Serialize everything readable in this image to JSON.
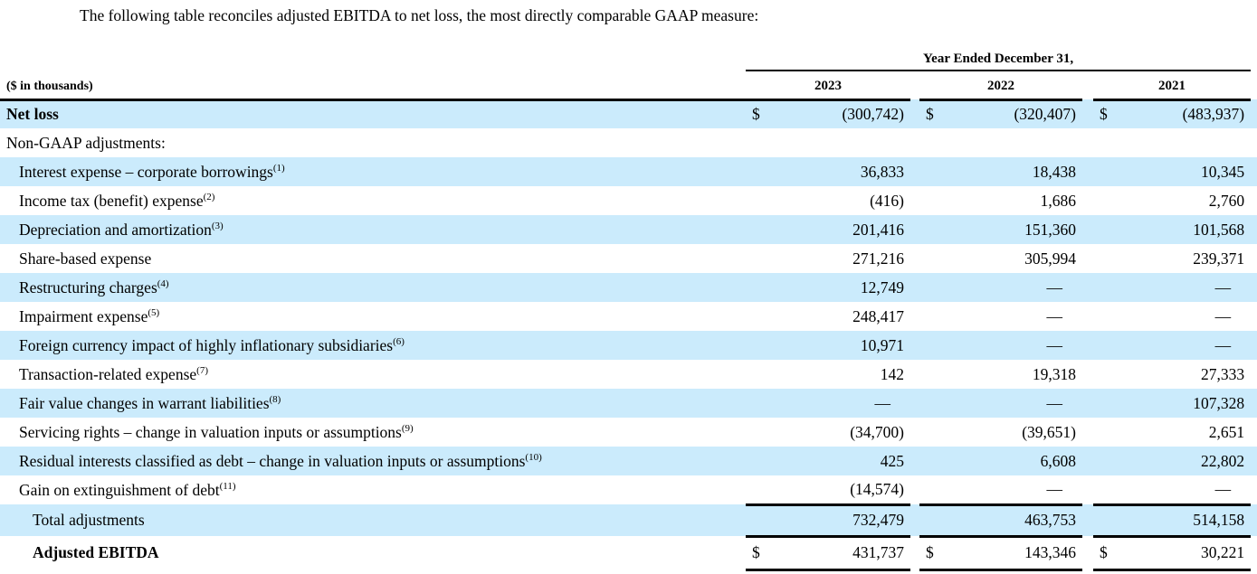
{
  "intro": "The following table reconciles adjusted EBITDA to net loss, the most directly comparable GAAP measure:",
  "colors": {
    "row_shade": "#cbebfc",
    "text": "#000000",
    "rule": "#000000"
  },
  "table": {
    "units_label": "($ in thousands)",
    "period_header": "Year Ended December 31,",
    "years": [
      "2023",
      "2022",
      "2021"
    ],
    "currency_symbol": "$",
    "dash": "—",
    "rows": [
      {
        "label": "Net loss",
        "sup": "",
        "indent": 0,
        "bold": true,
        "shaded": true,
        "dollar": true,
        "values": [
          "(300,742)",
          "(320,407)",
          "(483,937)"
        ]
      },
      {
        "label": "Non-GAAP adjustments:",
        "sup": "",
        "indent": 0,
        "bold": false,
        "shaded": false,
        "dollar": false,
        "values": [
          "",
          "",
          ""
        ]
      },
      {
        "label": "Interest expense – corporate borrowings",
        "sup": "(1)",
        "indent": 1,
        "bold": false,
        "shaded": true,
        "dollar": false,
        "values": [
          "36,833",
          "18,438",
          "10,345"
        ]
      },
      {
        "label": "Income tax (benefit) expense",
        "sup": "(2)",
        "indent": 1,
        "bold": false,
        "shaded": false,
        "dollar": false,
        "values": [
          "(416)",
          "1,686",
          "2,760"
        ]
      },
      {
        "label": "Depreciation and amortization",
        "sup": "(3)",
        "indent": 1,
        "bold": false,
        "shaded": true,
        "dollar": false,
        "values": [
          "201,416",
          "151,360",
          "101,568"
        ]
      },
      {
        "label": "Share-based expense",
        "sup": "",
        "indent": 1,
        "bold": false,
        "shaded": false,
        "dollar": false,
        "values": [
          "271,216",
          "305,994",
          "239,371"
        ]
      },
      {
        "label": "Restructuring charges",
        "sup": "(4)",
        "indent": 1,
        "bold": false,
        "shaded": true,
        "dollar": false,
        "values": [
          "12,749",
          "—",
          "—"
        ]
      },
      {
        "label": "Impairment expense",
        "sup": "(5)",
        "indent": 1,
        "bold": false,
        "shaded": false,
        "dollar": false,
        "values": [
          "248,417",
          "—",
          "—"
        ]
      },
      {
        "label": "Foreign currency impact of highly inflationary subsidiaries",
        "sup": "(6)",
        "indent": 1,
        "bold": false,
        "shaded": true,
        "dollar": false,
        "values": [
          "10,971",
          "—",
          "—"
        ]
      },
      {
        "label": "Transaction-related expense",
        "sup": "(7)",
        "indent": 1,
        "bold": false,
        "shaded": false,
        "dollar": false,
        "values": [
          "142",
          "19,318",
          "27,333"
        ]
      },
      {
        "label": "Fair value changes in warrant liabilities",
        "sup": "(8)",
        "indent": 1,
        "bold": false,
        "shaded": true,
        "dollar": false,
        "values": [
          "—",
          "—",
          "107,328"
        ]
      },
      {
        "label": "Servicing rights – change in valuation inputs or assumptions",
        "sup": "(9)",
        "indent": 1,
        "bold": false,
        "shaded": false,
        "dollar": false,
        "values": [
          "(34,700)",
          "(39,651)",
          "2,651"
        ]
      },
      {
        "label": "Residual interests classified as debt – change in valuation inputs or assumptions",
        "sup": "(10)",
        "indent": 1,
        "bold": false,
        "shaded": true,
        "dollar": false,
        "values": [
          "425",
          "6,608",
          "22,802"
        ]
      },
      {
        "label": "Gain on extinguishment of debt",
        "sup": "(11)",
        "indent": 1,
        "bold": false,
        "shaded": false,
        "dollar": false,
        "values": [
          "(14,574)",
          "—",
          "—"
        ]
      },
      {
        "label": "Total adjustments",
        "sup": "",
        "indent": 2,
        "bold": false,
        "shaded": true,
        "dollar": false,
        "border_top": true,
        "values": [
          "732,479",
          "463,753",
          "514,158"
        ]
      },
      {
        "label": "Adjusted EBITDA",
        "sup": "",
        "indent": 2,
        "bold": true,
        "shaded": false,
        "dollar": true,
        "border_top": true,
        "border_bottom": true,
        "values": [
          "431,737",
          "143,346",
          "30,221"
        ]
      }
    ]
  }
}
